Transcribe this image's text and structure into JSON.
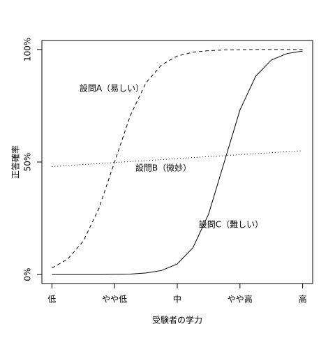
{
  "chart_data": {
    "type": "line",
    "x_label": "受験者の学力",
    "y_label": "正答確率",
    "x": [
      1,
      1.25,
      1.5,
      1.75,
      2,
      2.25,
      2.5,
      2.75,
      3,
      3.25,
      3.5,
      3.75,
      4,
      4.25,
      4.5,
      4.75,
      5
    ],
    "xlim": [
      0.84,
      5.16
    ],
    "xticks": [
      {
        "value": 1,
        "label": "低"
      },
      {
        "value": 2,
        "label": "やや低"
      },
      {
        "value": 3,
        "label": "中"
      },
      {
        "value": 4,
        "label": "やや高"
      },
      {
        "value": 5,
        "label": "高"
      }
    ],
    "ylim": [
      -4,
      104
    ],
    "yticks": [
      {
        "value": 0,
        "label": "0%"
      },
      {
        "value": 50,
        "label": "50%"
      },
      {
        "value": 100,
        "label": "100%"
      }
    ],
    "series": [
      {
        "name": "設問A（易しい）",
        "color": "#000000",
        "dash": "dashed",
        "values": [
          2.9,
          6.8,
          14.8,
          29.4,
          50,
          70.6,
          85.2,
          93.2,
          97.1,
          98.8,
          99.5,
          99.8,
          99.9,
          100,
          100,
          100,
          100
        ]
      },
      {
        "name": "設問B（微妙）",
        "color": "#000000",
        "dash": "dotted",
        "values": [
          48,
          48.4,
          48.9,
          49.3,
          49.8,
          50.2,
          50.6,
          51.1,
          51.5,
          52,
          52.4,
          52.8,
          53.3,
          53.7,
          54.1,
          54.6,
          55
        ]
      },
      {
        "name": "設問C（難しい）",
        "color": "#000000",
        "dash": "solid",
        "values": [
          0,
          0,
          0,
          0,
          0.1,
          0.2,
          0.7,
          1.8,
          4.7,
          11.9,
          26.9,
          50,
          73.1,
          88.1,
          95.3,
          98.2,
          99.3
        ]
      }
    ]
  }
}
